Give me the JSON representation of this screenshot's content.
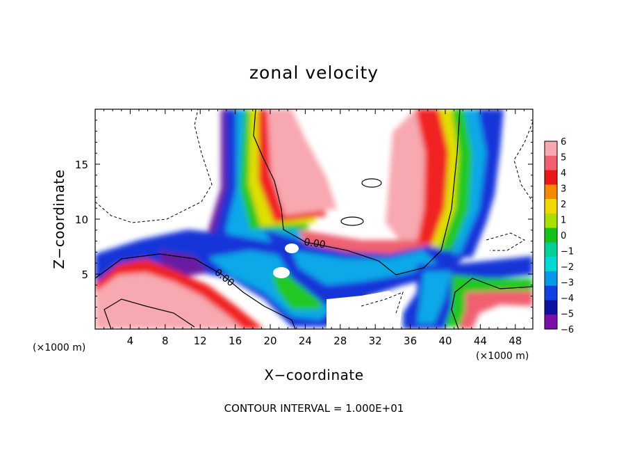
{
  "chart_data": {
    "type": "heatmap",
    "title": "zonal velocity",
    "xlabel": "X−coordinate",
    "ylabel": "Z−coordinate",
    "x_unit": "(×1000 m)",
    "y_unit": "(×1000 m)",
    "xlim": [
      0,
      50
    ],
    "ylim": [
      0,
      20
    ],
    "x_ticks": [
      "4",
      "8",
      "12",
      "16",
      "20",
      "24",
      "28",
      "32",
      "36",
      "40",
      "44",
      "48"
    ],
    "x_tick_values": [
      4,
      8,
      12,
      16,
      20,
      24,
      28,
      32,
      36,
      40,
      44,
      48
    ],
    "y_ticks": [
      "5",
      "10",
      "15"
    ],
    "y_tick_values": [
      5,
      10,
      15
    ],
    "colorbar": {
      "labels": [
        "6",
        "5",
        "4",
        "3",
        "2",
        "1",
        "0",
        "−1",
        "−2",
        "−3",
        "−4",
        "−5",
        "−6"
      ],
      "values": [
        6,
        5,
        4,
        3,
        2,
        1,
        0,
        -1,
        -2,
        -3,
        -4,
        -5,
        -6
      ],
      "colors": [
        "#f8a8b0",
        "#f06070",
        "#e81818",
        "#f88800",
        "#f0d800",
        "#a8e000",
        "#18c018",
        "#00d098",
        "#00d8d8",
        "#0898e8",
        "#1040e0",
        "#1010a0",
        "#7810a8"
      ]
    },
    "contour_labels": [
      "0.00",
      "0.00"
    ],
    "footer": "CONTOUR INTERVAL = 1.000E+01"
  }
}
